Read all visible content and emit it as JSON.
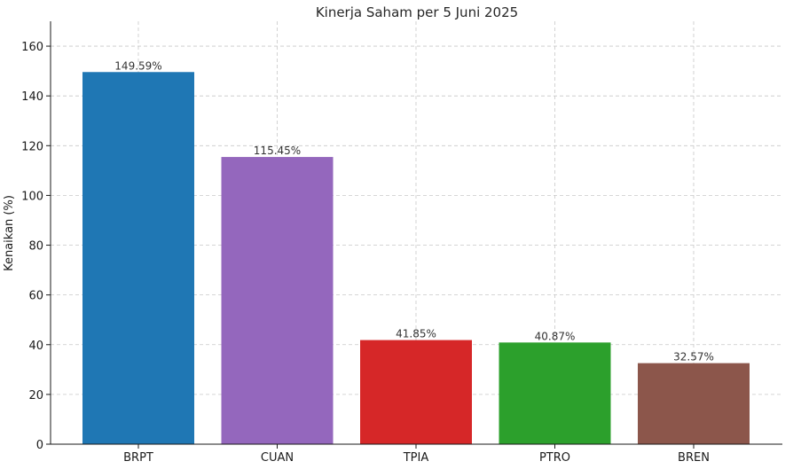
{
  "chart_data": {
    "type": "bar",
    "title": "Kinerja Saham per 5 Juni 2025",
    "xlabel": "",
    "ylabel": "Kenaikan (%)",
    "categories": [
      "BRPT",
      "CUAN",
      "TPIA",
      "PTRO",
      "BREN"
    ],
    "values": [
      149.59,
      115.45,
      41.85,
      40.87,
      32.57
    ],
    "value_labels": [
      "149.59%",
      "115.45%",
      "41.85%",
      "40.87%",
      "32.57%"
    ],
    "colors": [
      "#1f77b4",
      "#9467bd",
      "#d62728",
      "#2ca02c",
      "#8c564b"
    ],
    "ylim": [
      0,
      170
    ],
    "yticks": [
      0,
      20,
      40,
      60,
      80,
      100,
      120,
      140,
      160
    ],
    "grid": true,
    "legend": "none"
  }
}
